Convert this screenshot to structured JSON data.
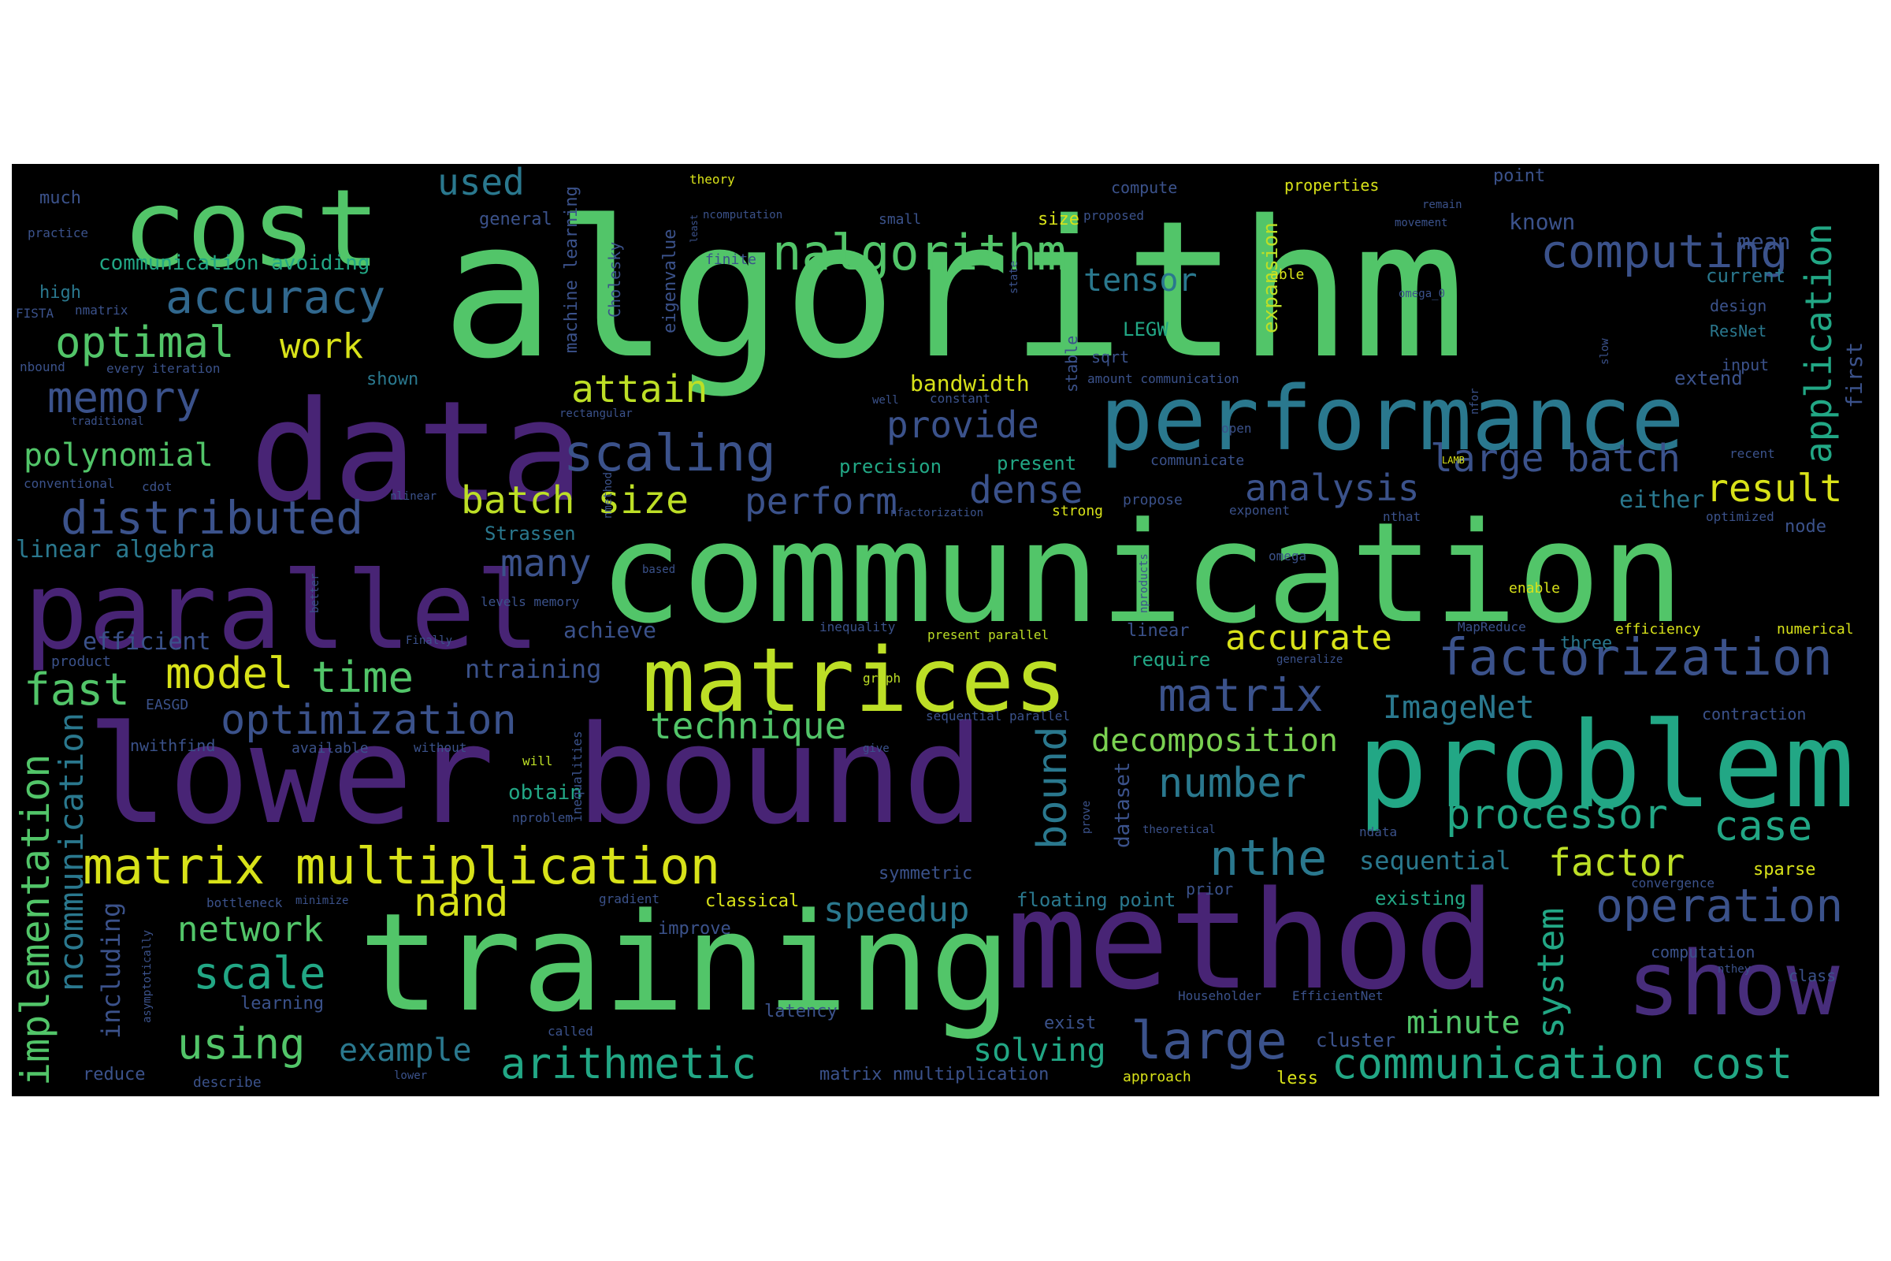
{
  "palette": {
    "background": "#000000",
    "page": "#ffffff",
    "yellow": "#bddf26",
    "yellow_bright": "#d8e219",
    "light_green": "#7ad151",
    "green": "#52c569",
    "teal": "#22a785",
    "cyan": "#1f9e89",
    "blue_teal": "#2a788e",
    "blue": "#31688e",
    "slate": "#3b528b",
    "purple": "#472d7b",
    "deep_purple": "#482475",
    "darkest": "#440154"
  },
  "words": [
    {
      "text": "algorithm",
      "weight": 1.0,
      "color": "#52c569"
    },
    {
      "text": "communication",
      "weight": 0.95,
      "color": "#52c569"
    },
    {
      "text": "lower bound",
      "weight": 0.9,
      "color": "#482475"
    },
    {
      "text": "data",
      "weight": 0.85,
      "color": "#482475"
    },
    {
      "text": "training",
      "weight": 0.85,
      "color": "#52c569"
    },
    {
      "text": "method",
      "weight": 0.82,
      "color": "#482475"
    },
    {
      "text": "problem",
      "weight": 0.75,
      "color": "#22a785"
    },
    {
      "text": "parallel",
      "weight": 0.72,
      "color": "#482475"
    },
    {
      "text": "cost",
      "weight": 0.7,
      "color": "#52c569"
    },
    {
      "text": "performance",
      "weight": 0.6,
      "color": "#2a788e"
    },
    {
      "text": "matrices",
      "weight": 0.6,
      "color": "#bddf26"
    },
    {
      "text": "show",
      "weight": 0.55,
      "color": "#472d7b"
    },
    {
      "text": "factorization",
      "weight": 0.4,
      "color": "#3b528b"
    },
    {
      "text": "matrix multiplication",
      "weight": 0.4,
      "color": "#d8e219"
    },
    {
      "text": "nalgorithm",
      "weight": 0.38,
      "color": "#52c569"
    },
    {
      "text": "computing",
      "weight": 0.37,
      "color": "#3b528b"
    },
    {
      "text": "scaling",
      "weight": 0.36,
      "color": "#3b528b"
    },
    {
      "text": "accuracy",
      "weight": 0.34,
      "color": "#31688e"
    },
    {
      "text": "distributed",
      "weight": 0.34,
      "color": "#3b528b"
    },
    {
      "text": "optimal",
      "weight": 0.32,
      "color": "#52c569"
    },
    {
      "text": "memory",
      "weight": 0.32,
      "color": "#3b528b"
    },
    {
      "text": "communication cost",
      "weight": 0.34,
      "color": "#22a785"
    },
    {
      "text": "operation",
      "weight": 0.33,
      "color": "#3b528b"
    },
    {
      "text": "large",
      "weight": 0.36,
      "color": "#3b528b"
    },
    {
      "text": "nthe",
      "weight": 0.34,
      "color": "#2a788e"
    },
    {
      "text": "arithmetic",
      "weight": 0.32,
      "color": "#22a785"
    },
    {
      "text": "model",
      "weight": 0.32,
      "color": "#d8e219"
    },
    {
      "text": "time",
      "weight": 0.32,
      "color": "#52c569"
    },
    {
      "text": "fast",
      "weight": 0.34,
      "color": "#52c569"
    },
    {
      "text": "optimization",
      "weight": 0.3,
      "color": "#3b528b"
    },
    {
      "text": "scale",
      "weight": 0.32,
      "color": "#22a785"
    },
    {
      "text": "using",
      "weight": 0.32,
      "color": "#52c569"
    },
    {
      "text": "matrix",
      "weight": 0.32,
      "color": "#3b528b"
    },
    {
      "text": "processor",
      "weight": 0.3,
      "color": "#22a785"
    },
    {
      "text": "case",
      "weight": 0.3,
      "color": "#22a785"
    },
    {
      "text": "number",
      "weight": 0.3,
      "color": "#2a788e"
    },
    {
      "text": "implementation",
      "weight": 0.3,
      "color": "#52c569"
    },
    {
      "text": "ncommunication",
      "weight": 0.28,
      "color": "#2a788e"
    },
    {
      "text": "batch size",
      "weight": 0.28,
      "color": "#bddf26"
    },
    {
      "text": "polynomial",
      "weight": 0.22,
      "color": "#52c569"
    },
    {
      "text": "dense",
      "weight": 0.24,
      "color": "#3b528b"
    },
    {
      "text": "analysis",
      "weight": 0.24,
      "color": "#3b528b"
    },
    {
      "text": "large batch",
      "weight": 0.24,
      "color": "#3b528b"
    },
    {
      "text": "result",
      "weight": 0.24,
      "color": "#d8e219"
    },
    {
      "text": "attain",
      "weight": 0.24,
      "color": "#bddf26"
    },
    {
      "text": "provide",
      "weight": 0.24,
      "color": "#3b528b"
    },
    {
      "text": "perform",
      "weight": 0.24,
      "color": "#3b528b"
    },
    {
      "text": "many",
      "weight": 0.24,
      "color": "#3b528b"
    },
    {
      "text": "used",
      "weight": 0.24,
      "color": "#2a788e"
    },
    {
      "text": "work",
      "weight": 0.22,
      "color": "#d8e219"
    },
    {
      "text": "tensor",
      "weight": 0.2,
      "color": "#2a788e"
    },
    {
      "text": "application",
      "weight": 0.22,
      "color": "#22a785"
    },
    {
      "text": "accurate",
      "weight": 0.22,
      "color": "#d8e219"
    },
    {
      "text": "factor",
      "weight": 0.24,
      "color": "#bddf26"
    },
    {
      "text": "technique",
      "weight": 0.22,
      "color": "#52c569"
    },
    {
      "text": "decomposition",
      "weight": 0.2,
      "color": "#7ad151"
    },
    {
      "text": "nand",
      "weight": 0.24,
      "color": "#d8e219"
    },
    {
      "text": "network",
      "weight": 0.22,
      "color": "#52c569"
    },
    {
      "text": "speedup",
      "weight": 0.22,
      "color": "#2a788e"
    },
    {
      "text": "bound",
      "weight": 0.24,
      "color": "#2a788e"
    },
    {
      "text": "system",
      "weight": 0.24,
      "color": "#22a785"
    },
    {
      "text": "ImageNet",
      "weight": 0.2,
      "color": "#2a788e"
    },
    {
      "text": "solving",
      "weight": 0.2,
      "color": "#22a785"
    },
    {
      "text": "example",
      "weight": 0.2,
      "color": "#2a788e"
    },
    {
      "text": "minute",
      "weight": 0.2,
      "color": "#52c569"
    },
    {
      "text": "sequential",
      "weight": 0.16,
      "color": "#2a788e"
    },
    {
      "text": "ntraining",
      "weight": 0.16,
      "color": "#3b528b"
    },
    {
      "text": "including",
      "weight": 0.16,
      "color": "#3b528b"
    },
    {
      "text": "linear algebra",
      "weight": 0.14,
      "color": "#2a788e"
    },
    {
      "text": "efficient",
      "weight": 0.14,
      "color": "#3b528b"
    },
    {
      "text": "communication avoiding",
      "weight": 0.12,
      "color": "#22a785"
    },
    {
      "text": "bandwidth",
      "weight": 0.12,
      "color": "#d8e219"
    },
    {
      "text": "known",
      "weight": 0.12,
      "color": "#3b528b"
    },
    {
      "text": "mean",
      "weight": 0.12,
      "color": "#3b528b"
    },
    {
      "text": "first",
      "weight": 0.12,
      "color": "#3b528b"
    },
    {
      "text": "current",
      "weight": 0.1,
      "color": "#2a788e"
    },
    {
      "text": "extend",
      "weight": 0.1,
      "color": "#3b528b"
    },
    {
      "text": "either",
      "weight": 0.12,
      "color": "#2a788e"
    },
    {
      "text": "node",
      "weight": 0.1,
      "color": "#3b528b"
    },
    {
      "text": "require",
      "weight": 0.1,
      "color": "#22a785"
    },
    {
      "text": "expansion",
      "weight": 0.1,
      "color": "#bddf26"
    },
    {
      "text": "LEGW",
      "weight": 0.1,
      "color": "#22a785"
    },
    {
      "text": "precision",
      "weight": 0.1,
      "color": "#22a785"
    },
    {
      "text": "present",
      "weight": 0.1,
      "color": "#22a785"
    },
    {
      "text": "floating point",
      "weight": 0.1,
      "color": "#2a788e"
    },
    {
      "text": "existing",
      "weight": 0.1,
      "color": "#22a785"
    },
    {
      "text": "Strassen",
      "weight": 0.1,
      "color": "#2a788e"
    },
    {
      "text": "dataset",
      "weight": 0.1,
      "color": "#3b528b"
    },
    {
      "text": "three",
      "weight": 0.09,
      "color": "#2a788e"
    },
    {
      "text": "contraction",
      "weight": 0.08,
      "color": "#3b528b"
    },
    {
      "text": "achieve",
      "weight": 0.1,
      "color": "#3b528b"
    },
    {
      "text": "obtain",
      "weight": 0.09,
      "color": "#22a785"
    },
    {
      "text": "high",
      "weight": 0.09,
      "color": "#2a788e"
    },
    {
      "text": "much",
      "weight": 0.08,
      "color": "#3b528b"
    },
    {
      "text": "general",
      "weight": 0.08,
      "color": "#3b528b"
    },
    {
      "text": "properties",
      "weight": 0.08,
      "color": "#d8e219"
    },
    {
      "text": "point",
      "weight": 0.08,
      "color": "#3b528b"
    },
    {
      "text": "compute",
      "weight": 0.08,
      "color": "#3b528b"
    },
    {
      "text": "cluster",
      "weight": 0.09,
      "color": "#3b528b"
    },
    {
      "text": "sparse",
      "weight": 0.08,
      "color": "#d8e219"
    },
    {
      "text": "design",
      "weight": 0.08,
      "color": "#3b528b"
    },
    {
      "text": "ResNet",
      "weight": 0.08,
      "color": "#2a788e"
    },
    {
      "text": "machine learning",
      "weight": 0.08,
      "color": "#3b528b"
    },
    {
      "text": "eigenvalue",
      "weight": 0.08,
      "color": "#3b528b"
    },
    {
      "text": "Cholesky",
      "weight": 0.08,
      "color": "#3b528b"
    },
    {
      "text": "shown",
      "weight": 0.08,
      "color": "#2a788e"
    },
    {
      "text": "symmetric",
      "weight": 0.08,
      "color": "#3b528b"
    },
    {
      "text": "classical",
      "weight": 0.08,
      "color": "#d8e219"
    },
    {
      "text": "latency",
      "weight": 0.08,
      "color": "#3b528b"
    },
    {
      "text": "improve",
      "weight": 0.08,
      "color": "#3b528b"
    },
    {
      "text": "exist",
      "weight": 0.08,
      "color": "#3b528b"
    },
    {
      "text": "efficiency",
      "weight": 0.07,
      "color": "#d8e219"
    },
    {
      "text": "numerical",
      "weight": 0.07,
      "color": "#d8e219"
    },
    {
      "text": "computation",
      "weight": 0.07,
      "color": "#3b528b"
    },
    {
      "text": "matrix nmultiplication",
      "weight": 0.08,
      "color": "#3b528b"
    },
    {
      "text": "reduce",
      "weight": 0.08,
      "color": "#3b528b"
    },
    {
      "text": "nwithfind",
      "weight": 0.08,
      "color": "#3b528b"
    },
    {
      "text": "available",
      "weight": 0.07,
      "color": "#3b528b"
    },
    {
      "text": "learning",
      "weight": 0.08,
      "color": "#3b528b"
    },
    {
      "text": "prior",
      "weight": 0.07,
      "color": "#3b528b"
    },
    {
      "text": "less",
      "weight": 0.08,
      "color": "#d8e219"
    },
    {
      "text": "class",
      "weight": 0.07,
      "color": "#3b528b"
    },
    {
      "text": "describe",
      "weight": 0.06,
      "color": "#3b528b"
    },
    {
      "text": "called",
      "weight": 0.06,
      "color": "#3b528b"
    },
    {
      "text": "approach",
      "weight": 0.07,
      "color": "#d8e219"
    },
    {
      "text": "product",
      "weight": 0.07,
      "color": "#3b528b"
    },
    {
      "text": "EASGD",
      "weight": 0.07,
      "color": "#3b528b"
    },
    {
      "text": "FISTA",
      "weight": 0.06,
      "color": "#3b528b"
    },
    {
      "text": "nmatrix",
      "weight": 0.06,
      "color": "#3b528b"
    },
    {
      "text": "nbound",
      "weight": 0.06,
      "color": "#3b528b"
    },
    {
      "text": "every iteration",
      "weight": 0.06,
      "color": "#3b528b"
    },
    {
      "text": "practice",
      "weight": 0.06,
      "color": "#3b528b"
    },
    {
      "text": "traditional",
      "weight": 0.06,
      "color": "#3b528b"
    },
    {
      "text": "conventional",
      "weight": 0.06,
      "color": "#3b528b"
    },
    {
      "text": "cdot",
      "weight": 0.05,
      "color": "#3b528b"
    },
    {
      "text": "rectangular",
      "weight": 0.05,
      "color": "#3b528b"
    },
    {
      "text": "theory",
      "weight": 0.06,
      "color": "#d8e219"
    },
    {
      "text": "ncomputation",
      "weight": 0.05,
      "color": "#3b528b"
    },
    {
      "text": "small",
      "weight": 0.06,
      "color": "#3b528b"
    },
    {
      "text": "finite",
      "weight": 0.06,
      "color": "#3b528b"
    },
    {
      "text": "size",
      "weight": 0.06,
      "color": "#d8e219"
    },
    {
      "text": "proposed",
      "weight": 0.05,
      "color": "#3b528b"
    },
    {
      "text": "remain",
      "weight": 0.05,
      "color": "#3b528b"
    },
    {
      "text": "movement",
      "weight": 0.05,
      "color": "#3b528b"
    },
    {
      "text": "stable",
      "weight": 0.06,
      "color": "#3b528b"
    },
    {
      "text": "able",
      "weight": 0.06,
      "color": "#d8e219"
    },
    {
      "text": "sqrt",
      "weight": 0.06,
      "color": "#3b528b"
    },
    {
      "text": "amount communication",
      "weight": 0.05,
      "color": "#3b528b"
    },
    {
      "text": "constant",
      "weight": 0.05,
      "color": "#3b528b"
    },
    {
      "text": "well",
      "weight": 0.05,
      "color": "#3b528b"
    },
    {
      "text": "open",
      "weight": 0.05,
      "color": "#3b528b"
    },
    {
      "text": "communicate",
      "weight": 0.05,
      "color": "#3b528b"
    },
    {
      "text": "propose",
      "weight": 0.05,
      "color": "#3b528b"
    },
    {
      "text": "exponent",
      "weight": 0.05,
      "color": "#3b528b"
    },
    {
      "text": "nthat",
      "weight": 0.05,
      "color": "#3b528b"
    },
    {
      "text": "strong",
      "weight": 0.06,
      "color": "#d8e219"
    },
    {
      "text": "nfactorization",
      "weight": 0.05,
      "color": "#3b528b"
    },
    {
      "text": "nlinear",
      "weight": 0.05,
      "color": "#3b528b"
    },
    {
      "text": "nmethod",
      "weight": 0.05,
      "color": "#3b528b"
    },
    {
      "text": "omega_0",
      "weight": 0.04,
      "color": "#3b528b"
    },
    {
      "text": "omega",
      "weight": 0.05,
      "color": "#3b528b"
    },
    {
      "text": "input",
      "weight": 0.05,
      "color": "#3b528b"
    },
    {
      "text": "recent",
      "weight": 0.05,
      "color": "#3b528b"
    },
    {
      "text": "optimized",
      "weight": 0.05,
      "color": "#3b528b"
    },
    {
      "text": "LAMB",
      "weight": 0.04,
      "color": "#d8e219"
    },
    {
      "text": "enable",
      "weight": 0.05,
      "color": "#d8e219"
    },
    {
      "text": "MapReduce",
      "weight": 0.05,
      "color": "#3b528b"
    },
    {
      "text": "generalize",
      "weight": 0.04,
      "color": "#3b528b"
    },
    {
      "text": "nproducts",
      "weight": 0.04,
      "color": "#3b528b"
    },
    {
      "text": "based",
      "weight": 0.04,
      "color": "#3b528b"
    },
    {
      "text": "levels memory",
      "weight": 0.05,
      "color": "#3b528b"
    },
    {
      "text": "better",
      "weight": 0.04,
      "color": "#3b528b"
    },
    {
      "text": "Finally",
      "weight": 0.04,
      "color": "#3b528b"
    },
    {
      "text": "inequality",
      "weight": 0.05,
      "color": "#3b528b"
    },
    {
      "text": "present parallel",
      "weight": 0.05,
      "color": "#bddf26"
    },
    {
      "text": "linear",
      "weight": 0.06,
      "color": "#3b528b"
    },
    {
      "text": "graph",
      "weight": 0.05,
      "color": "#bddf26"
    },
    {
      "text": "sequential parallel",
      "weight": 0.05,
      "color": "#3b528b"
    },
    {
      "text": "give",
      "weight": 0.04,
      "color": "#3b528b"
    },
    {
      "text": "will",
      "weight": 0.05,
      "color": "#bddf26"
    },
    {
      "text": "without",
      "weight": 0.05,
      "color": "#3b528b"
    },
    {
      "text": "nproblem",
      "weight": 0.05,
      "color": "#3b528b"
    },
    {
      "text": "inequalities",
      "weight": 0.05,
      "color": "#3b528b"
    },
    {
      "text": "prove",
      "weight": 0.04,
      "color": "#3b528b"
    },
    {
      "text": "theoretical",
      "weight": 0.04,
      "color": "#3b528b"
    },
    {
      "text": "ndata",
      "weight": 0.05,
      "color": "#3b528b"
    },
    {
      "text": "convergence",
      "weight": 0.05,
      "color": "#3b528b"
    },
    {
      "text": "gradient",
      "weight": 0.05,
      "color": "#3b528b"
    },
    {
      "text": "bottleneck",
      "weight": 0.05,
      "color": "#3b528b"
    },
    {
      "text": "minimize",
      "weight": 0.04,
      "color": "#3b528b"
    },
    {
      "text": "asymptotically",
      "weight": 0.04,
      "color": "#3b528b"
    },
    {
      "text": "Householder",
      "weight": 0.05,
      "color": "#3b528b"
    },
    {
      "text": "EfficientNet",
      "weight": 0.05,
      "color": "#3b528b"
    },
    {
      "text": "nthey",
      "weight": 0.04,
      "color": "#3b528b"
    },
    {
      "text": "lower",
      "weight": 0.04,
      "color": "#3b528b"
    },
    {
      "text": "state",
      "weight": 0.04,
      "color": "#3b528b"
    },
    {
      "text": "least",
      "weight": 0.04,
      "color": "#3b528b"
    },
    {
      "text": "nfor",
      "weight": 0.04,
      "color": "#3b528b"
    },
    {
      "text": "slow",
      "weight": 0.04,
      "color": "#3b528b"
    }
  ]
}
